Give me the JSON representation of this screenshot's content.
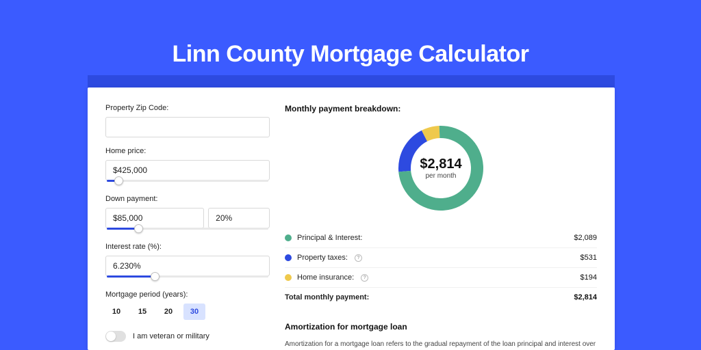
{
  "page": {
    "title": "Linn County Mortgage Calculator",
    "colors": {
      "bg": "#3b5bff",
      "accent": "#2d4ae0",
      "card": "#ffffff"
    }
  },
  "form": {
    "zip": {
      "label": "Property Zip Code:",
      "value": ""
    },
    "home_price": {
      "label": "Home price:",
      "value": "$425,000",
      "slider_pct": 8
    },
    "down_payment": {
      "label": "Down payment:",
      "value": "$85,000",
      "pct_value": "20%",
      "slider_pct": 20
    },
    "interest_rate": {
      "label": "Interest rate (%):",
      "value": "6.230%",
      "slider_pct": 30
    },
    "mortgage_period": {
      "label": "Mortgage period (years):",
      "options": [
        "10",
        "15",
        "20",
        "30"
      ],
      "selected": "30"
    },
    "veteran": {
      "label": "I am veteran or military",
      "checked": false
    }
  },
  "breakdown": {
    "title": "Monthly payment breakdown:",
    "donut": {
      "center_value": "$2,814",
      "center_sub": "per month",
      "slices": [
        {
          "key": "pi",
          "pct": 74.2,
          "color": "#4fae8c"
        },
        {
          "key": "tax",
          "pct": 18.9,
          "color": "#2d4ae0"
        },
        {
          "key": "ins",
          "pct": 6.9,
          "color": "#efc94c"
        }
      ],
      "ring_width": 18,
      "radius": 62
    },
    "items": [
      {
        "label": "Principal & Interest:",
        "value": "$2,089",
        "color": "#4fae8c",
        "info": false
      },
      {
        "label": "Property taxes:",
        "value": "$531",
        "color": "#2d4ae0",
        "info": true
      },
      {
        "label": "Home insurance:",
        "value": "$194",
        "color": "#efc94c",
        "info": true
      }
    ],
    "total": {
      "label": "Total monthly payment:",
      "value": "$2,814"
    }
  },
  "amortization": {
    "title": "Amortization for mortgage loan",
    "text": "Amortization for a mortgage loan refers to the gradual repayment of the loan principal and interest over a specified"
  }
}
